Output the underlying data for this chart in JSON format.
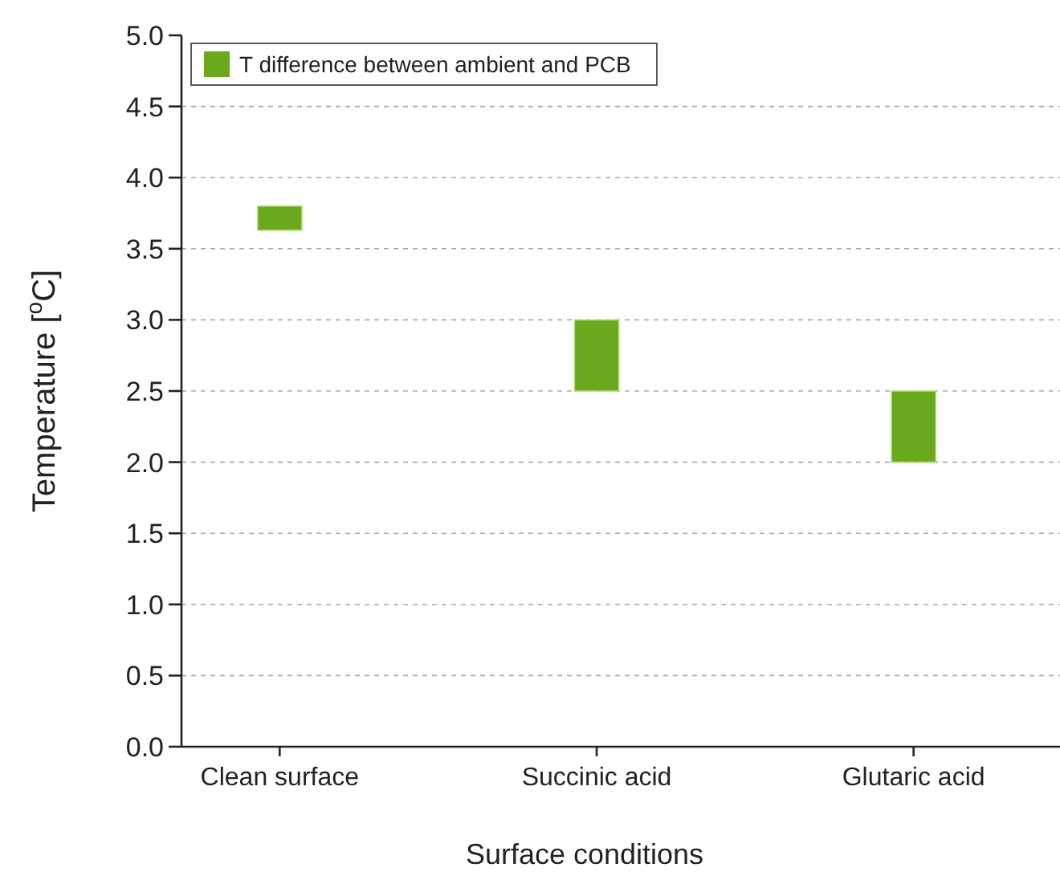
{
  "chart_data": {
    "type": "bar",
    "xlabel": "Surface conditions",
    "ylabel": "Temperature [$^{o}$C]",
    "categories": [
      "Clean surface",
      "Succinic acid",
      "Glutaric acid"
    ],
    "series": [
      {
        "name": "T difference between ambient and PCB",
        "color": "#6aa81e",
        "values": [
          0.17,
          0.5,
          0.5
        ],
        "base": [
          3.63,
          2.5,
          2.0
        ]
      }
    ],
    "ylim": [
      0,
      5
    ],
    "yticks": [
      {
        "value": 0,
        "label": "0.0"
      },
      0.5,
      {
        "value": 1,
        "label": "1.0"
      },
      1.5,
      {
        "value": 2,
        "label": "2.0"
      },
      2.5,
      {
        "value": 3,
        "label": "3.0"
      },
      3.5,
      {
        "value": 4,
        "label": "4.0"
      },
      4.5,
      {
        "value": 5,
        "label": "5.0"
      }
    ],
    "grid": "y",
    "legend": "top left"
  }
}
